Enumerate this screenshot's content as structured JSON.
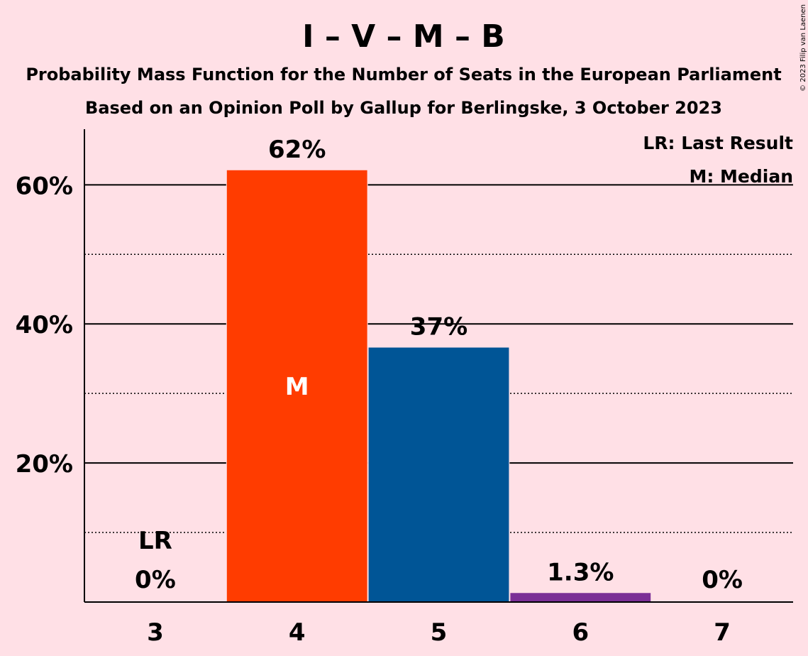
{
  "chart_data": {
    "type": "bar",
    "title": "I – V – M – B",
    "subtitle_lines": [
      "Probability Mass Function for the Number of Seats in the European Parliament",
      "Based on an Opinion Poll by Gallup for Berlingske, 3 October 2023"
    ],
    "categories": [
      "3",
      "4",
      "5",
      "6",
      "7"
    ],
    "values": [
      0,
      62.1,
      36.6,
      1.3,
      0
    ],
    "value_labels": [
      "0%",
      "62%",
      "37%",
      "1.3%",
      "0%"
    ],
    "bar_colors": [
      "#FF3C00",
      "#FF3C00",
      "#005596",
      "#7B2F96",
      "#7B2F96"
    ],
    "ylim": [
      0,
      68
    ],
    "y_ticks": [
      {
        "value": 20,
        "label": "20%"
      },
      {
        "value": 40,
        "label": "40%"
      },
      {
        "value": 60,
        "label": "60%"
      }
    ],
    "minor_gridlines": [
      10,
      30,
      50
    ],
    "median_category": "4",
    "median_marker": "M",
    "last_result_category": "3",
    "last_result_marker": "LR",
    "legend": [
      "LR: Last Result",
      "M: Median"
    ],
    "legend_position": "top-right",
    "grid": true
  },
  "copyright": "© 2023 Filip van Laenen"
}
